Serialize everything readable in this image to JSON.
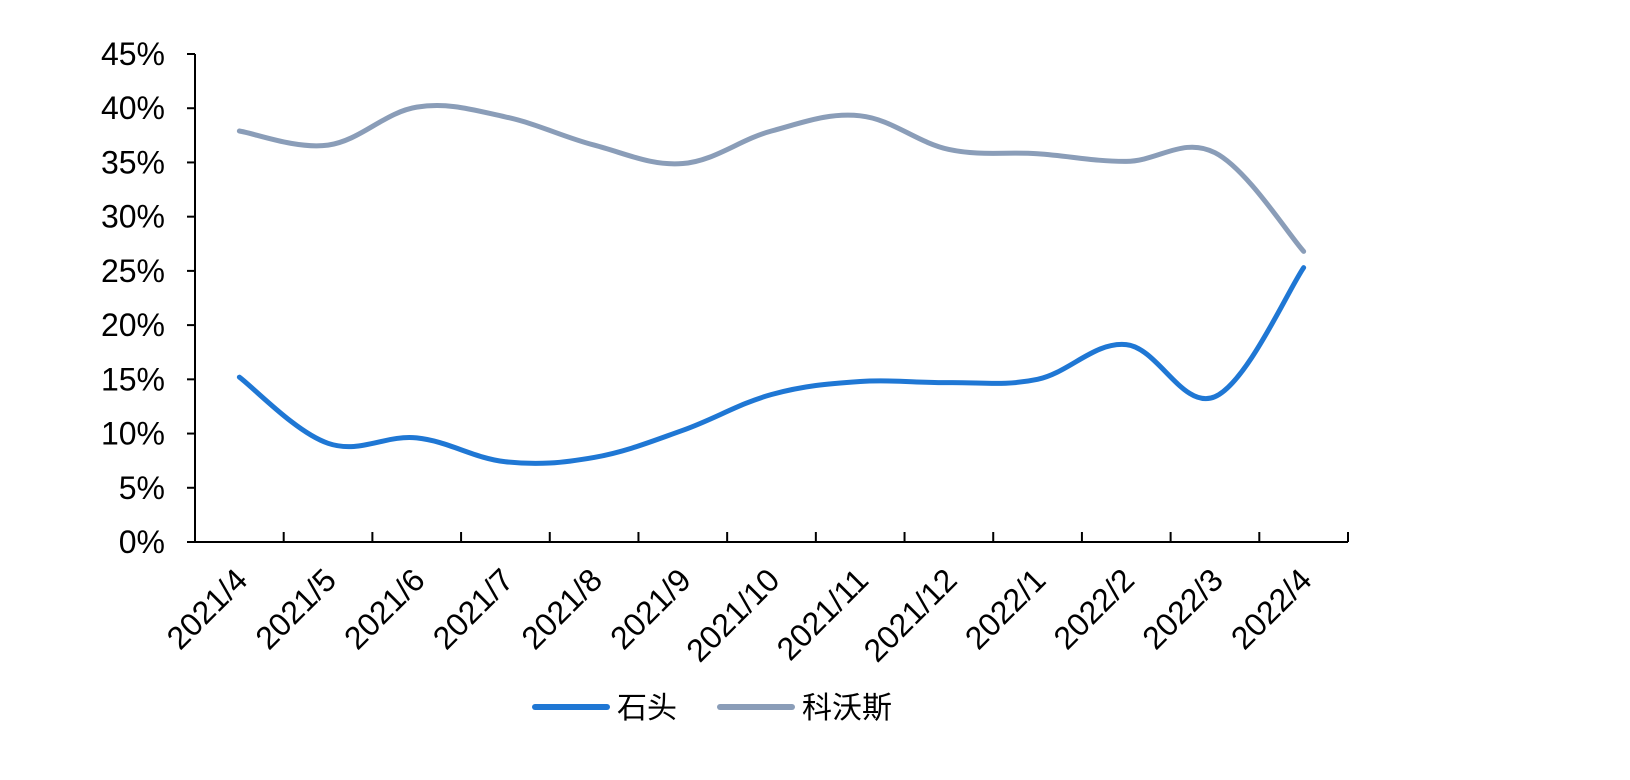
{
  "chart_data": {
    "type": "line",
    "title": "",
    "xlabel": "",
    "ylabel": "",
    "categories": [
      "2021/4",
      "2021/5",
      "2021/6",
      "2021/7",
      "2021/8",
      "2021/9",
      "2021/10",
      "2021/11",
      "2021/12",
      "2022/1",
      "2022/2",
      "2022/3",
      "2022/4"
    ],
    "y_ticks": [
      "0%",
      "5%",
      "10%",
      "15%",
      "20%",
      "25%",
      "30%",
      "35%",
      "40%",
      "45%"
    ],
    "ylim": [
      0,
      45
    ],
    "grid": false,
    "legend_position": "bottom",
    "series": [
      {
        "name": "石头",
        "color": "#1f77d4",
        "values": [
          15.2,
          9.1,
          9.6,
          7.4,
          7.8,
          10.3,
          13.6,
          14.8,
          14.7,
          15.0,
          18.2,
          13.4,
          25.3
        ]
      },
      {
        "name": "科沃斯",
        "color": "#8a9db8",
        "values": [
          37.9,
          36.6,
          40.1,
          39.2,
          36.6,
          34.9,
          37.9,
          39.3,
          36.2,
          35.8,
          35.1,
          35.9,
          26.8
        ]
      }
    ]
  }
}
